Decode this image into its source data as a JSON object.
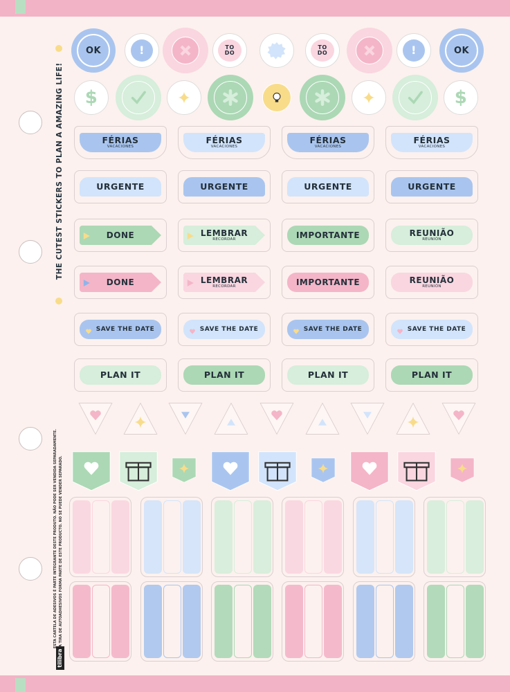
{
  "tagline": "THE CUTEST STICKERS TO PLAN A AMAZING LIFE!",
  "legal": [
    "ESTA CARTELA DE ADESIVOS É PARTE INTEGRANTE DESTE PRODUTO. NÃO PODE SER VENDIDA SEPARADAMENTE.",
    "ESTA TIRA DE AUTOADHESIVOS FORMA PARTE DE ESTE PRODUCTO. NO SE PUEDE VENDER SEPARADO."
  ],
  "brand": "tilibra",
  "circle_row_1": [
    {
      "label": "OK"
    },
    {
      "label": "!"
    },
    {
      "label": "TO DO"
    },
    {
      "label": "TO DO"
    },
    {
      "label": "!"
    },
    {
      "label": "OK"
    }
  ],
  "circle_row_2": [
    {
      "label": "$"
    },
    {
      "label": "$"
    }
  ],
  "label_rows": [
    {
      "items": [
        {
          "label": "FÉRIAS",
          "sub": "VACACIONES"
        },
        {
          "label": "FÉRIAS",
          "sub": "VACACIONES"
        },
        {
          "label": "FÉRIAS",
          "sub": "VACACIONES"
        },
        {
          "label": "FÉRIAS",
          "sub": "VACACIONES"
        }
      ]
    },
    {
      "items": [
        {
          "label": "URGENTE"
        },
        {
          "label": "URGENTE"
        },
        {
          "label": "URGENTE"
        },
        {
          "label": "URGENTE"
        }
      ]
    },
    {
      "items": [
        {
          "label": "DONE"
        },
        {
          "label": "LEMBRAR",
          "sub": "RECORDAR"
        },
        {
          "label": "IMPORTANTE"
        },
        {
          "label": "REUNIÃO",
          "sub": "REUNIÓN"
        }
      ]
    },
    {
      "items": [
        {
          "label": "DONE"
        },
        {
          "label": "LEMBRAR",
          "sub": "RECORDAR"
        },
        {
          "label": "IMPORTANTE"
        },
        {
          "label": "REUNIÃO",
          "sub": "REUNIÓN"
        }
      ]
    },
    {
      "items": [
        {
          "label": "SAVE THE DATE"
        },
        {
          "label": "SAVE THE DATE"
        },
        {
          "label": "SAVE THE DATE"
        },
        {
          "label": "SAVE THE DATE"
        }
      ]
    },
    {
      "items": [
        {
          "label": "PLAN IT"
        },
        {
          "label": "PLAN IT"
        },
        {
          "label": "PLAN IT"
        },
        {
          "label": "PLAN IT"
        }
      ]
    }
  ]
}
